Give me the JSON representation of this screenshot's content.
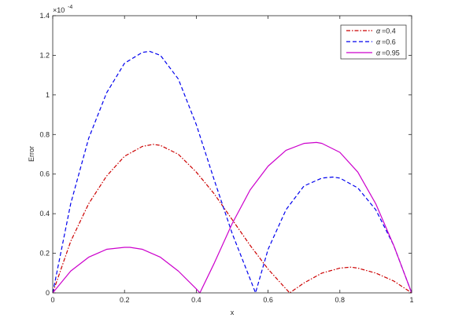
{
  "chart_data": {
    "type": "line",
    "xlabel": "x",
    "ylabel": "Error",
    "exponent_label": "×10",
    "exponent_power": "-4",
    "xlim": [
      0,
      1
    ],
    "ylim": [
      0,
      1.4
    ],
    "xticks": [
      0,
      0.2,
      0.4,
      0.6,
      0.8,
      1
    ],
    "xtick_labels": [
      "0",
      "0.2",
      "0.4",
      "0.6",
      "0.8",
      "1"
    ],
    "yticks": [
      0,
      0.2,
      0.4,
      0.6,
      0.8,
      1,
      1.2,
      1.4
    ],
    "ytick_labels": [
      "0",
      "0.2",
      "0.4",
      "0.6",
      "0.8",
      "1",
      "1.2",
      "1.4"
    ],
    "legend_position": "top-right",
    "series": [
      {
        "name": "α=0.4",
        "legend_symbol": "α",
        "legend_value": "=0.4",
        "color": "#cc0000",
        "style": "dashdot",
        "x": [
          0,
          0.05,
          0.1,
          0.15,
          0.2,
          0.25,
          0.28,
          0.3,
          0.35,
          0.4,
          0.45,
          0.5,
          0.55,
          0.6,
          0.65,
          0.66,
          0.7,
          0.75,
          0.8,
          0.83,
          0.85,
          0.9,
          0.95,
          1
        ],
        "y": [
          0,
          0.26,
          0.45,
          0.59,
          0.69,
          0.74,
          0.75,
          0.745,
          0.7,
          0.61,
          0.5,
          0.37,
          0.24,
          0.12,
          0.02,
          0,
          0.05,
          0.1,
          0.125,
          0.13,
          0.125,
          0.1,
          0.06,
          0
        ]
      },
      {
        "name": "α=0.6",
        "legend_symbol": "α",
        "legend_value": "=0.6",
        "color": "#0000ee",
        "style": "dashed",
        "x": [
          0,
          0.05,
          0.1,
          0.15,
          0.2,
          0.25,
          0.27,
          0.3,
          0.35,
          0.4,
          0.45,
          0.5,
          0.55,
          0.565,
          0.6,
          0.65,
          0.7,
          0.75,
          0.78,
          0.8,
          0.85,
          0.9,
          0.95,
          1
        ],
        "y": [
          0,
          0.45,
          0.78,
          1.01,
          1.16,
          1.215,
          1.22,
          1.2,
          1.08,
          0.85,
          0.57,
          0.3,
          0.07,
          0,
          0.22,
          0.42,
          0.54,
          0.58,
          0.585,
          0.58,
          0.53,
          0.42,
          0.24,
          0
        ]
      },
      {
        "name": "α=0.95",
        "legend_symbol": "α",
        "legend_value": "=0.95",
        "color": "#cc00cc",
        "style": "solid",
        "x": [
          0,
          0.05,
          0.1,
          0.15,
          0.2,
          0.215,
          0.25,
          0.3,
          0.35,
          0.4,
          0.41,
          0.45,
          0.5,
          0.55,
          0.6,
          0.65,
          0.7,
          0.735,
          0.75,
          0.8,
          0.85,
          0.9,
          0.95,
          1
        ],
        "y": [
          0,
          0.11,
          0.18,
          0.22,
          0.23,
          0.23,
          0.22,
          0.18,
          0.11,
          0.02,
          0,
          0.15,
          0.35,
          0.52,
          0.64,
          0.72,
          0.755,
          0.76,
          0.755,
          0.71,
          0.61,
          0.45,
          0.24,
          0
        ]
      }
    ]
  }
}
